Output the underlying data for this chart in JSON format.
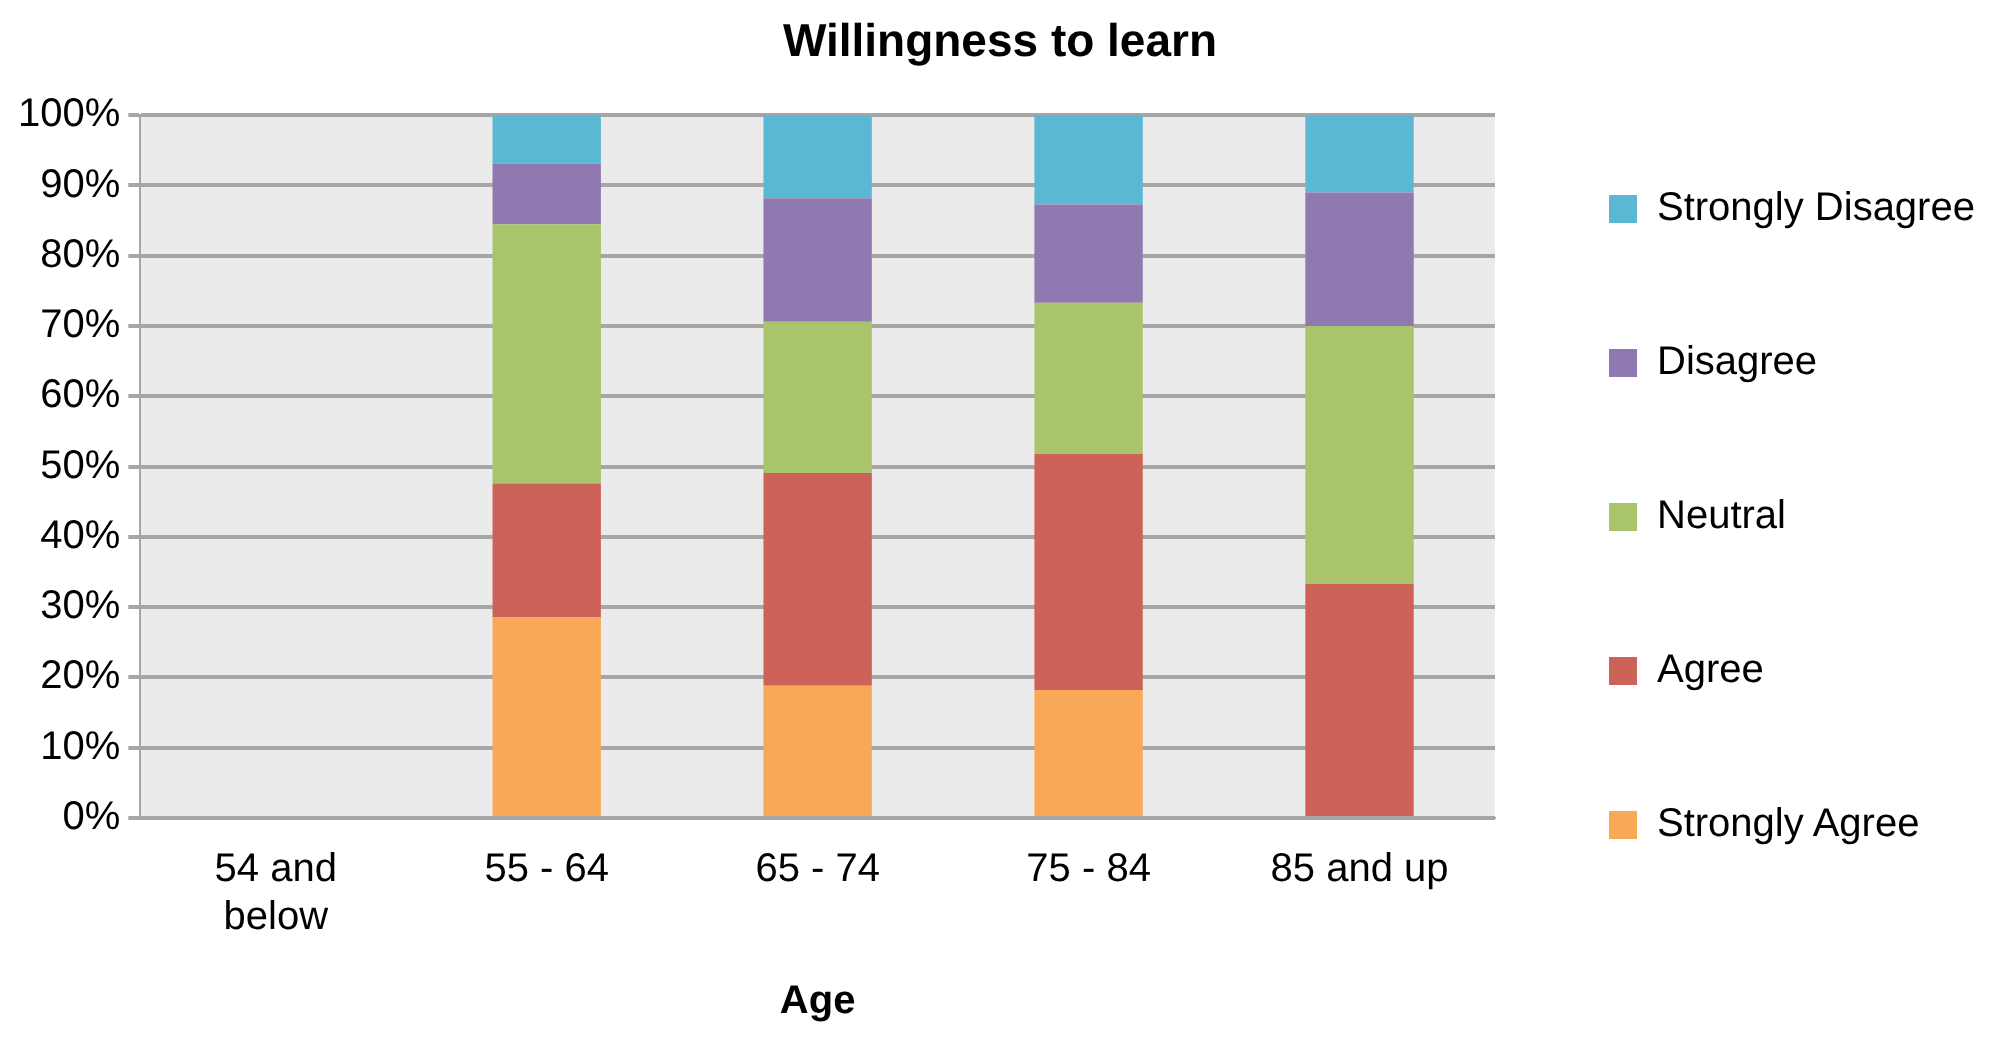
{
  "chart_data": {
    "type": "bar",
    "title": "Willingness to learn",
    "xlabel": "Age",
    "stacked": true,
    "categories": [
      "54 and below",
      "55 - 64",
      "65 - 74",
      "75 - 84",
      "85 and up"
    ],
    "series": [
      {
        "name": "Strongly Agree",
        "color": "#f9a857",
        "values": [
          null,
          28.6,
          18.8,
          18.2,
          0
        ]
      },
      {
        "name": "Agree",
        "color": "#cd6259",
        "values": [
          null,
          19.0,
          30.3,
          33.6,
          33.3
        ]
      },
      {
        "name": "Neutral",
        "color": "#a9c46a",
        "values": [
          null,
          36.9,
          21.5,
          21.5,
          36.7
        ]
      },
      {
        "name": "Disagree",
        "color": "#9079b0",
        "values": [
          null,
          8.6,
          17.6,
          14.0,
          19.0
        ]
      },
      {
        "name": "Strongly Disagree",
        "color": "#5bb8d4",
        "values": [
          null,
          6.9,
          11.8,
          12.7,
          11.0
        ]
      }
    ],
    "ylim": [
      0,
      100
    ],
    "yticks": [
      {
        "value": 0,
        "label": "0%"
      },
      {
        "value": 10,
        "label": "10%"
      },
      {
        "value": 20,
        "label": "20%"
      },
      {
        "value": 30,
        "label": "30%"
      },
      {
        "value": 40,
        "label": "40%"
      },
      {
        "value": 50,
        "label": "50%"
      },
      {
        "value": 60,
        "label": "60%"
      },
      {
        "value": 70,
        "label": "70%"
      },
      {
        "value": 80,
        "label": "80%"
      },
      {
        "value": 90,
        "label": "90%"
      },
      {
        "value": 100,
        "label": "100%"
      }
    ],
    "grid": "y",
    "legend": "right"
  }
}
